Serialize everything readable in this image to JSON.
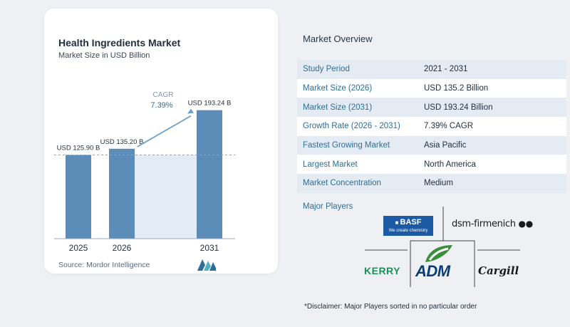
{
  "chart": {
    "title": "Health Ingredients Market",
    "subtitle": "Market Size in USD Billion",
    "source": "Source:  Mordor Intelligence",
    "cagr_label": "CAGR",
    "cagr_value": "7.39%"
  },
  "chart_data": {
    "type": "bar",
    "categories": [
      "2025",
      "2026",
      "2031"
    ],
    "values": [
      125.9,
      135.2,
      193.24
    ],
    "data_labels": [
      "USD 125.90 B",
      "USD 135.20 B",
      "USD 193.24 B"
    ],
    "title": "Health Ingredients Market",
    "subtitle": "Market Size in USD Billion",
    "xlabel": "",
    "ylabel": "",
    "ylim": [
      0,
      210
    ],
    "grid": false,
    "annotation": "CAGR 7.39%",
    "bar_color": "#5b8db8",
    "accent_color": "#6da2c8"
  },
  "overview": {
    "title": "Market Overview",
    "rows": [
      {
        "label": "Study Period",
        "value": "2021 - 2031"
      },
      {
        "label": "Market Size (2026)",
        "value": "USD 135.2 Billion"
      },
      {
        "label": "Market Size (2031)",
        "value": "USD 193.24 Billion"
      },
      {
        "label": "Growth Rate (2026 - 2031)",
        "value": "7.39% CAGR"
      },
      {
        "label": "Fastest Growing Market",
        "value": "Asia Pacific"
      },
      {
        "label": "Largest Market",
        "value": "North America"
      },
      {
        "label": "Market Concentration",
        "value": "Medium"
      }
    ],
    "players_title": "Major Players",
    "players": {
      "basf": "BASF",
      "basf_tagline": "We create chemistry",
      "dsm": "dsm-firmenich",
      "kerry": "KERRY",
      "adm": "ADM",
      "cargill": "Cargill"
    },
    "disclaimer": "*Disclaimer: Major Players sorted in no particular order"
  },
  "colors": {
    "label_blue": "#2f6e97",
    "row_shade": "#e4ebf2",
    "adm_green": "#3c8f3a",
    "kerry_green": "#1e8f5a",
    "basf_blue": "#1c5aa6"
  }
}
